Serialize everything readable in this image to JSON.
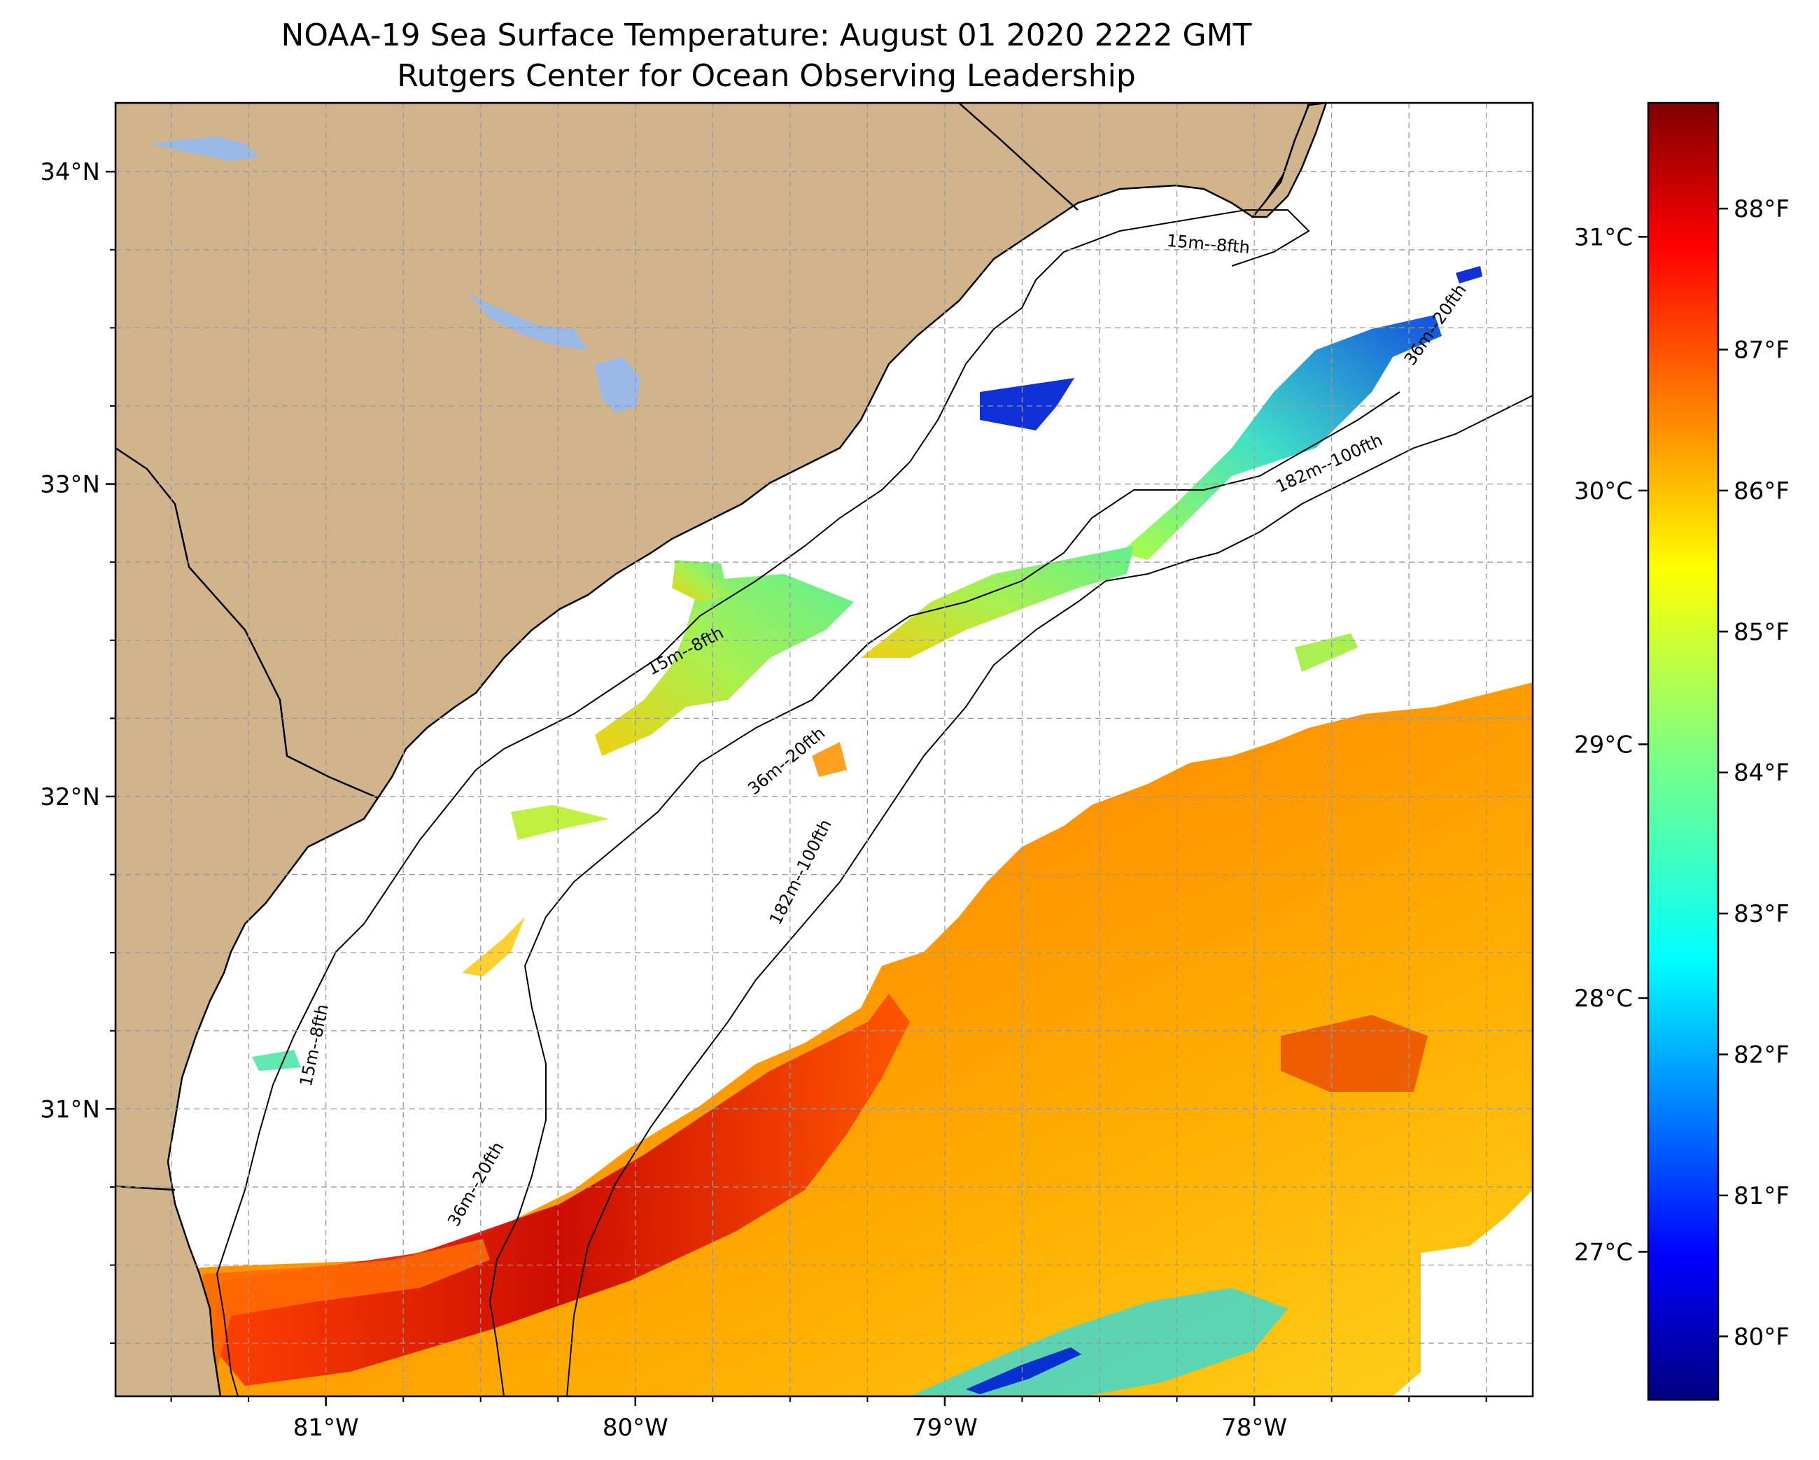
{
  "title": {
    "line1": "NOAA-19 Sea Surface Temperature: August 01 2020 2222 GMT",
    "line2": "Rutgers Center for Ocean Observing Leadership"
  },
  "map": {
    "lon_range": [
      -81.68,
      -77.1
    ],
    "lat_range": [
      30.08,
      34.22
    ],
    "lon_ticks": [
      {
        "value": -81,
        "label": "81°W"
      },
      {
        "value": -80,
        "label": "80°W"
      },
      {
        "value": -79,
        "label": "79°W"
      },
      {
        "value": -78,
        "label": "78°W"
      }
    ],
    "lat_ticks": [
      {
        "value": 34,
        "label": "34°N"
      },
      {
        "value": 33,
        "label": "33°N"
      },
      {
        "value": 32,
        "label": "32°N"
      },
      {
        "value": 31,
        "label": "31°N"
      }
    ],
    "gridlines": "dashed",
    "colors": {
      "land": "#d2b48c",
      "lake": "#9ab8e6",
      "ocean_no_data": "#ffffff",
      "coastline": "#000000"
    },
    "isobath_labels": [
      {
        "text": "15m--8fth",
        "lon": -78.15,
        "lat": 33.75,
        "angle": 5
      },
      {
        "text": "15m--8fth",
        "lon": -79.83,
        "lat": 32.45,
        "angle": -28
      },
      {
        "text": "15m--8fth",
        "lon": -81.02,
        "lat": 31.2,
        "angle": -78
      },
      {
        "text": "36m--20fth",
        "lon": -79.5,
        "lat": 32.1,
        "angle": -40
      },
      {
        "text": "36m--20fth",
        "lon": -80.5,
        "lat": 30.75,
        "angle": -60
      },
      {
        "text": "36m--20fth",
        "lon": -77.4,
        "lat": 33.5,
        "angle": -55
      },
      {
        "text": "182m--100fth",
        "lon": -77.75,
        "lat": 33.05,
        "angle": -25
      },
      {
        "text": "182m--100fth",
        "lon": -79.45,
        "lat": 31.75,
        "angle": -63
      }
    ]
  },
  "colorbar": {
    "colormap": "jet",
    "fahrenheit_ticks": [
      "80°F",
      "81°F",
      "82°F",
      "83°F",
      "84°F",
      "85°F",
      "86°F",
      "87°F",
      "88°F"
    ],
    "fahrenheit_values": [
      80,
      81,
      82,
      83,
      84,
      85,
      86,
      87,
      88
    ],
    "celsius_ticks": [
      "27°C",
      "28°C",
      "29°C",
      "30°C",
      "31°C"
    ],
    "celsius_values": [
      27,
      28,
      29,
      30,
      31
    ],
    "range_f": [
      79.55,
      88.75
    ]
  }
}
